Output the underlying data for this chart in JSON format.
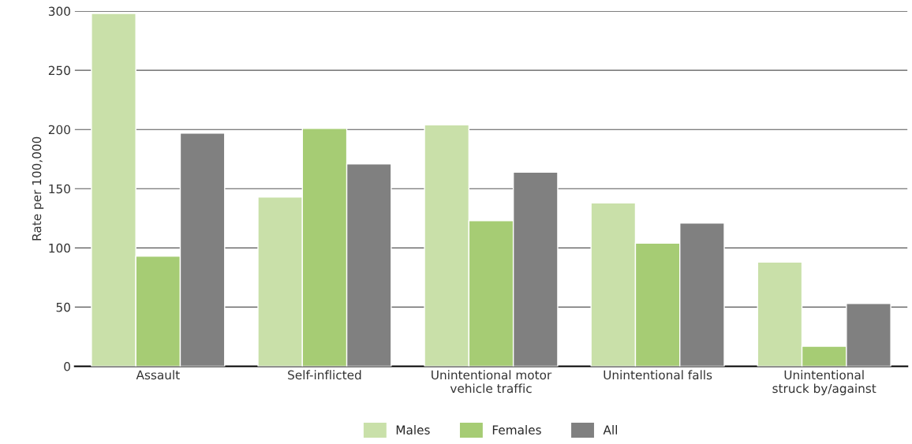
{
  "chart_data": {
    "type": "bar",
    "ylabel": "Rate per 100,000",
    "categories": [
      "Assault",
      "Self-inflicted",
      "Unintentional motor\nvehicle traffic",
      "Unintentional falls",
      "Unintentional\nstruck by/against"
    ],
    "series": [
      {
        "name": "Males",
        "color": "#c9e0a9",
        "values": [
          298,
          143,
          204,
          138,
          88
        ]
      },
      {
        "name": "Females",
        "color": "#a6cc74",
        "values": [
          93,
          201,
          123,
          104,
          17
        ]
      },
      {
        "name": "All",
        "color": "#808080",
        "values": [
          197,
          171,
          164,
          121,
          53
        ]
      }
    ],
    "ylim": [
      0,
      300
    ],
    "yticks": [
      0,
      50,
      100,
      150,
      200,
      250,
      300
    ],
    "grid": "y",
    "legend": "bottom"
  }
}
